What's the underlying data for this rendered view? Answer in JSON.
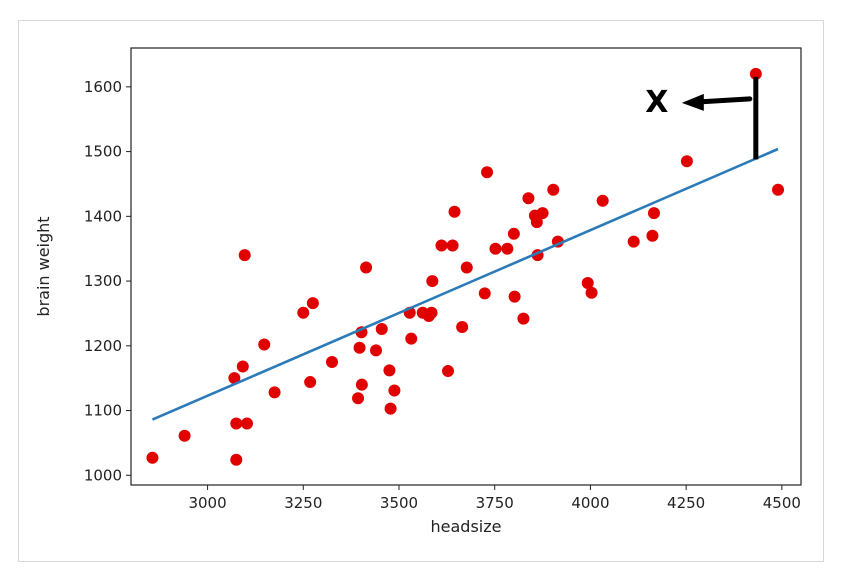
{
  "chart_data": {
    "type": "scatter",
    "title": "",
    "xlabel": "headsize",
    "ylabel": "brain weight",
    "xlim": [
      2800,
      4550
    ],
    "ylim": [
      985,
      1660
    ],
    "xticks": [
      "3000",
      "3250",
      "3500",
      "3750",
      "4000",
      "4250",
      "4500"
    ],
    "yticks": [
      "1000",
      "1100",
      "1200",
      "1300",
      "1400",
      "1500",
      "1600"
    ],
    "grid": false,
    "colors": {
      "points": "#e00000",
      "line": "#2b7bb9",
      "annotation": "#000000"
    },
    "series": [
      {
        "type": "scatter",
        "points": [
          [
            2856,
            1027
          ],
          [
            2940,
            1061
          ],
          [
            3070,
            1150
          ],
          [
            3075,
            1080
          ],
          [
            3075,
            1024
          ],
          [
            3092,
            1168
          ],
          [
            3097,
            1340
          ],
          [
            3103,
            1080
          ],
          [
            3148,
            1202
          ],
          [
            3175,
            1128
          ],
          [
            3250,
            1251
          ],
          [
            3268,
            1144
          ],
          [
            3275,
            1266
          ],
          [
            3325,
            1175
          ],
          [
            3393,
            1119
          ],
          [
            3397,
            1197
          ],
          [
            3402,
            1221
          ],
          [
            3403,
            1140
          ],
          [
            3414,
            1321
          ],
          [
            3440,
            1193
          ],
          [
            3455,
            1226
          ],
          [
            3475,
            1162
          ],
          [
            3478,
            1103
          ],
          [
            3488,
            1131
          ],
          [
            3528,
            1251
          ],
          [
            3532,
            1211
          ],
          [
            3562,
            1251
          ],
          [
            3578,
            1246
          ],
          [
            3585,
            1251
          ],
          [
            3587,
            1300
          ],
          [
            3611,
            1355
          ],
          [
            3628,
            1161
          ],
          [
            3640,
            1355
          ],
          [
            3645,
            1407
          ],
          [
            3665,
            1229
          ],
          [
            3677,
            1321
          ],
          [
            3724,
            1281
          ],
          [
            3730,
            1468
          ],
          [
            3752,
            1350
          ],
          [
            3783,
            1350
          ],
          [
            3800,
            1373
          ],
          [
            3802,
            1276
          ],
          [
            3825,
            1242
          ],
          [
            3838,
            1428
          ],
          [
            3855,
            1401
          ],
          [
            3860,
            1391
          ],
          [
            3862,
            1340
          ],
          [
            3875,
            1405
          ],
          [
            3903,
            1441
          ],
          [
            3915,
            1361
          ],
          [
            3993,
            1297
          ],
          [
            4003,
            1282
          ],
          [
            4032,
            1424
          ],
          [
            4113,
            1361
          ],
          [
            4162,
            1370
          ],
          [
            4166,
            1405
          ],
          [
            4252,
            1485
          ],
          [
            4432,
            1620
          ],
          [
            4490,
            1441
          ]
        ]
      },
      {
        "type": "line",
        "points": [
          [
            2856,
            1086
          ],
          [
            4490,
            1504
          ]
        ]
      }
    ],
    "annotations": [
      {
        "text": "X",
        "kind": "outlier-marker",
        "points_to": [
          4432,
          1620
        ],
        "line_to": [
          4432,
          1488
        ]
      }
    ]
  }
}
